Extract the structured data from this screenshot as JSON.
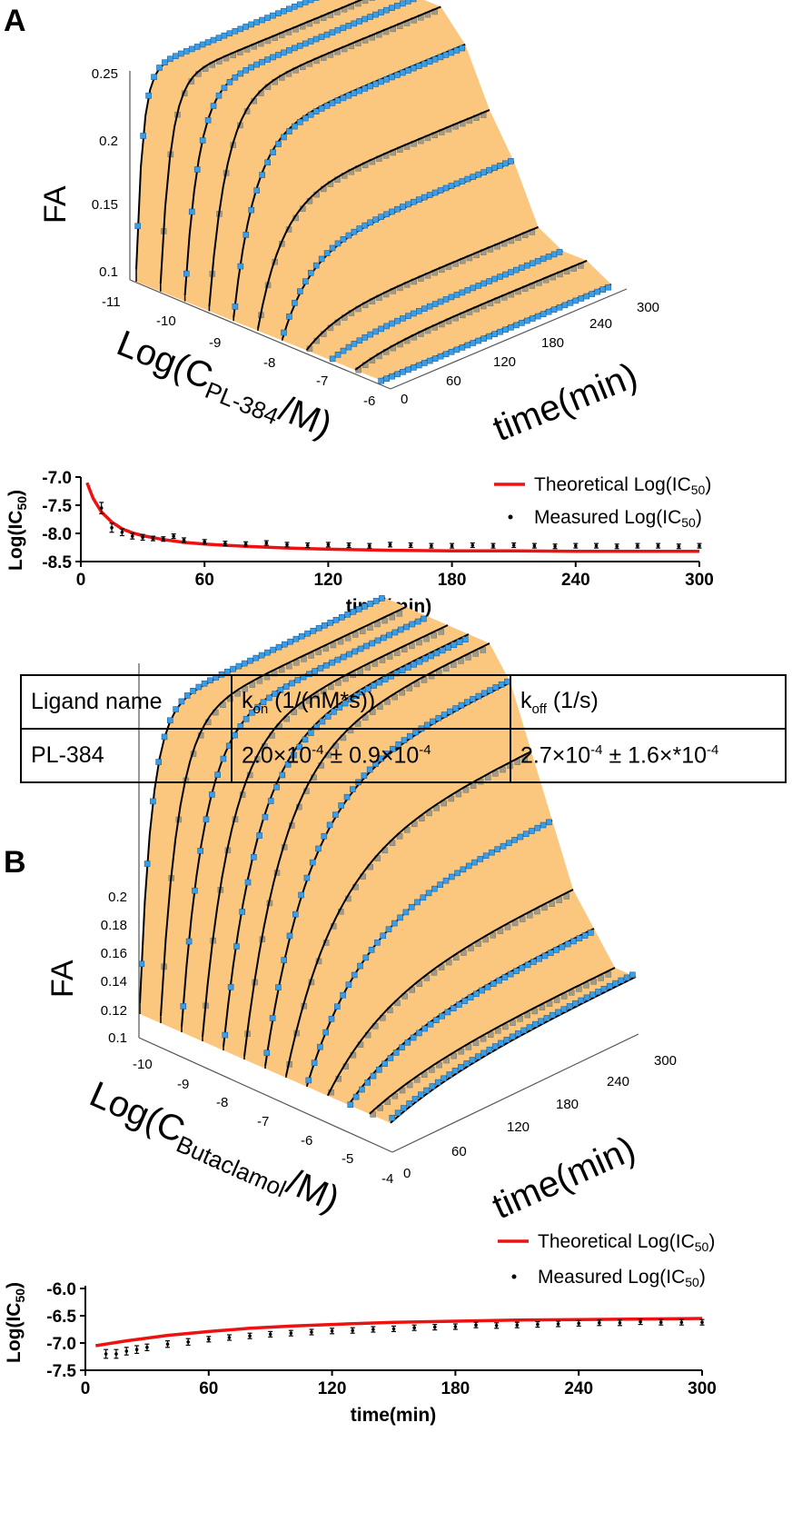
{
  "panels": {
    "A": {
      "letter": "A",
      "surface": {
        "z_label": "FA",
        "x_label_main": "Log(C",
        "x_label_sub": "PL-384",
        "x_label_tail": "/M)",
        "t_label": "time(min)",
        "z_ticks": [
          "0.1",
          "0.15",
          "0.2",
          "0.25"
        ],
        "x_ticks": [
          "-11",
          "-10",
          "-9",
          "-8",
          "-7",
          "-6"
        ],
        "t_ticks": [
          "0",
          "60",
          "120",
          "180",
          "240",
          "300"
        ]
      },
      "ic50_chart": {
        "y_label": "Log(IC",
        "y_label_sub": "50",
        "y_label_tail": ")",
        "x_label": "time(min)",
        "y_ticks": [
          "-7.0",
          "-7.5",
          "-8.0",
          "-8.5"
        ],
        "x_ticks": [
          "0",
          "60",
          "120",
          "180",
          "240",
          "300"
        ],
        "legend_theoretical": "Theoretical Log(IC",
        "legend_measured": "Measured Log(IC",
        "legend_sub": "50",
        "legend_tail": ")"
      },
      "table": {
        "headers": {
          "ligand": "Ligand name",
          "kon_pre": "k",
          "kon_sub": "on",
          "kon_post": " (1/(nM*s))",
          "koff_pre": "k",
          "koff_sub": "off",
          "koff_post": " (1/s)"
        },
        "row": {
          "ligand": "PL-384",
          "kon_a": "2.0×10",
          "kon_a_exp": "-4",
          "kon_b": " ± 0.9×10",
          "kon_b_exp": "-4",
          "koff_a": "2.7×10",
          "koff_a_exp": "-4",
          "koff_b": " ± 1.6×*10",
          "koff_b_exp": "-4"
        }
      }
    },
    "B": {
      "letter": "B",
      "surface": {
        "z_label": "FA",
        "x_label_main": "Log(C",
        "x_label_sub": "Butaclamol",
        "x_label_tail": "/M)",
        "t_label": "time(min)",
        "z_ticks": [
          "0.1",
          "0.12",
          "0.14",
          "0.16",
          "0.18",
          "0.2"
        ],
        "x_ticks": [
          "-10",
          "-9",
          "-8",
          "-7",
          "-6",
          "-5",
          "-4"
        ],
        "t_ticks": [
          "0",
          "60",
          "120",
          "180",
          "240",
          "300"
        ]
      },
      "ic50_chart": {
        "y_label": "Log(IC",
        "y_label_sub": "50",
        "y_label_tail": ")",
        "x_label": "time(min)",
        "y_ticks": [
          "-6.0",
          "-6.5",
          "-7.0",
          "-7.5"
        ],
        "x_ticks": [
          "0",
          "60",
          "120",
          "180",
          "240",
          "300"
        ],
        "legend_theoretical": "Theoretical Log(IC",
        "legend_measured": "Measured Log(IC",
        "legend_sub": "50",
        "legend_tail": ")"
      }
    }
  },
  "colors": {
    "surface": "#fbc77f",
    "measured_marker": "#3a9ee6",
    "fit_line": "#000000",
    "theoretical_line": "#ee1111",
    "grey_marker": "#a09a88"
  },
  "chart_data": [
    {
      "type": "line",
      "panel": "A",
      "title": "",
      "xlabel": "time(min)",
      "ylabel": "Log(IC50)",
      "xlim": [
        0,
        300
      ],
      "ylim": [
        -8.5,
        -7.0
      ],
      "legend_position": "top-right",
      "series": [
        {
          "name": "Theoretical Log(IC50)",
          "x": [
            3,
            6,
            10,
            15,
            20,
            25,
            30,
            40,
            50,
            60,
            80,
            100,
            120,
            150,
            180,
            210,
            240,
            270,
            300
          ],
          "values": [
            -7.1,
            -7.38,
            -7.62,
            -7.8,
            -7.92,
            -7.99,
            -8.04,
            -8.11,
            -8.16,
            -8.19,
            -8.23,
            -8.26,
            -8.28,
            -8.3,
            -8.31,
            -8.31,
            -8.32,
            -8.32,
            -8.32
          ]
        },
        {
          "name": "Measured Log(IC50)",
          "x": [
            10,
            15,
            20,
            25,
            30,
            35,
            40,
            45,
            50,
            60,
            70,
            80,
            90,
            100,
            110,
            120,
            130,
            140,
            150,
            160,
            170,
            180,
            190,
            200,
            210,
            220,
            230,
            240,
            250,
            260,
            270,
            280,
            290,
            300
          ],
          "values": [
            -7.55,
            -7.9,
            -7.98,
            -8.05,
            -8.07,
            -8.09,
            -8.1,
            -8.05,
            -8.12,
            -8.15,
            -8.18,
            -8.19,
            -8.17,
            -8.2,
            -8.21,
            -8.2,
            -8.21,
            -8.22,
            -8.2,
            -8.21,
            -8.22,
            -8.22,
            -8.21,
            -8.22,
            -8.21,
            -8.22,
            -8.23,
            -8.22,
            -8.22,
            -8.23,
            -8.22,
            -8.22,
            -8.23,
            -8.22
          ],
          "errors": [
            0.1,
            0.08,
            0.06,
            0.05,
            0.05,
            0.04,
            0.04,
            0.04,
            0.04,
            0.04,
            0.04,
            0.04,
            0.04,
            0.04,
            0.04,
            0.04,
            0.04,
            0.04,
            0.04,
            0.04,
            0.04,
            0.04,
            0.04,
            0.04,
            0.04,
            0.04,
            0.04,
            0.04,
            0.04,
            0.04,
            0.04,
            0.04,
            0.04,
            0.04
          ]
        }
      ]
    },
    {
      "type": "line",
      "panel": "B",
      "title": "",
      "xlabel": "time(min)",
      "ylabel": "Log(IC50)",
      "xlim": [
        0,
        300
      ],
      "ylim": [
        -7.5,
        -6.0
      ],
      "legend_position": "top-right",
      "series": [
        {
          "name": "Theoretical Log(IC50)",
          "x": [
            5,
            20,
            40,
            60,
            80,
            100,
            120,
            150,
            180,
            210,
            240,
            270,
            300
          ],
          "values": [
            -7.05,
            -6.96,
            -6.86,
            -6.79,
            -6.73,
            -6.69,
            -6.66,
            -6.62,
            -6.6,
            -6.58,
            -6.57,
            -6.56,
            -6.55
          ]
        },
        {
          "name": "Measured Log(IC50)",
          "x": [
            10,
            15,
            20,
            25,
            30,
            40,
            50,
            60,
            70,
            80,
            90,
            100,
            110,
            120,
            130,
            140,
            150,
            160,
            170,
            180,
            190,
            200,
            210,
            220,
            230,
            240,
            250,
            260,
            270,
            280,
            290,
            300
          ],
          "values": [
            -7.2,
            -7.2,
            -7.15,
            -7.12,
            -7.08,
            -7.02,
            -6.98,
            -6.93,
            -6.9,
            -6.87,
            -6.84,
            -6.82,
            -6.8,
            -6.78,
            -6.77,
            -6.75,
            -6.74,
            -6.72,
            -6.71,
            -6.7,
            -6.67,
            -6.68,
            -6.67,
            -6.66,
            -6.65,
            -6.64,
            -6.63,
            -6.63,
            -6.61,
            -6.62,
            -6.62,
            -6.62
          ],
          "errors": [
            0.08,
            0.08,
            0.07,
            0.07,
            0.06,
            0.06,
            0.06,
            0.05,
            0.05,
            0.05,
            0.05,
            0.05,
            0.05,
            0.05,
            0.05,
            0.05,
            0.05,
            0.05,
            0.05,
            0.05,
            0.05,
            0.05,
            0.05,
            0.05,
            0.05,
            0.05,
            0.05,
            0.05,
            0.05,
            0.05,
            0.05,
            0.05
          ]
        }
      ]
    },
    {
      "type": "scatter",
      "panel": "A",
      "title": "",
      "xlabel": "Log(C PL-384/M)",
      "ylabel": "time(min)",
      "zlabel": "FA",
      "x": [
        -11,
        -10.5,
        -10,
        -9.5,
        -9,
        -8.5,
        -8,
        -7.5,
        -7,
        -6.5,
        -6
      ],
      "tlim": [
        0,
        300
      ],
      "zlim": [
        0.1,
        0.25
      ],
      "curves_FA_at_t300": [
        0.25,
        0.25,
        0.25,
        0.25,
        0.23,
        0.19,
        0.16,
        0.12,
        0.11,
        0.11,
        0.1
      ]
    },
    {
      "type": "scatter",
      "panel": "B",
      "title": "",
      "xlabel": "Log(C Butaclamol/M)",
      "ylabel": "time(min)",
      "zlabel": "FA",
      "x": [
        -10,
        -9.5,
        -9,
        -8.5,
        -8,
        -7.5,
        -7,
        -6.5,
        -6,
        -5.5,
        -5,
        -4.5,
        -4
      ],
      "tlim": [
        0,
        300
      ],
      "zlim": [
        0.1,
        0.2
      ],
      "curves_FA_at_t300": [
        0.2,
        0.2,
        0.2,
        0.2,
        0.2,
        0.2,
        0.19,
        0.17,
        0.15,
        0.13,
        0.12,
        0.11,
        0.11
      ]
    }
  ]
}
